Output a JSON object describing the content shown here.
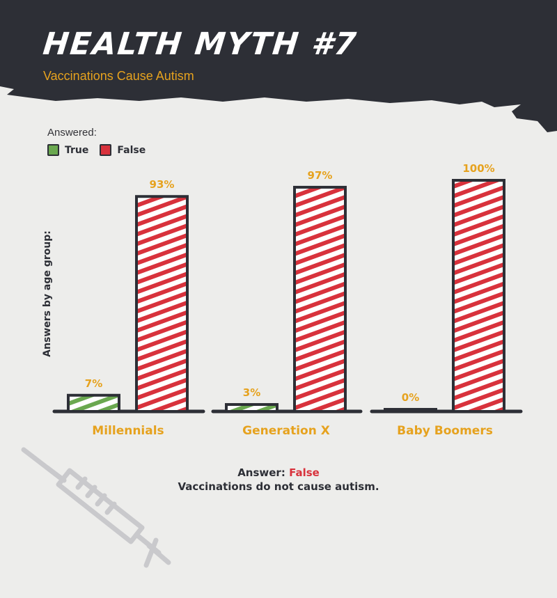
{
  "header": {
    "title": "HEALTH MYTH #7",
    "subtitle": "Vaccinations Cause Autism"
  },
  "legend": {
    "title": "Answered:",
    "placement": "top-left",
    "items": [
      {
        "label": "True",
        "color": "#6aa84f"
      },
      {
        "label": "False",
        "color": "#d8323c"
      }
    ]
  },
  "colors": {
    "banner": "#2d2f36",
    "accent": "#e6a21e",
    "true": "#6aa84f",
    "false": "#d8323c",
    "outline": "#2d2f36"
  },
  "chart_data": {
    "type": "bar",
    "title": "",
    "xlabel": "",
    "ylabel": "Answers by age group:",
    "categories": [
      "Millennials",
      "Generation X",
      "Baby Boomers"
    ],
    "series": [
      {
        "name": "True",
        "values": [
          7,
          3,
          0
        ],
        "labels": [
          "7%",
          "3%",
          "0%"
        ]
      },
      {
        "name": "False",
        "values": [
          93,
          97,
          100
        ],
        "labels": [
          "93%",
          "97%",
          "100%"
        ]
      }
    ],
    "ylim": [
      0,
      100
    ],
    "grid": false
  },
  "answer": {
    "prefix": "Answer:",
    "value": "False",
    "explanation": "Vaccinations do not cause autism."
  },
  "decoration": {
    "icon": "syringe-icon"
  }
}
